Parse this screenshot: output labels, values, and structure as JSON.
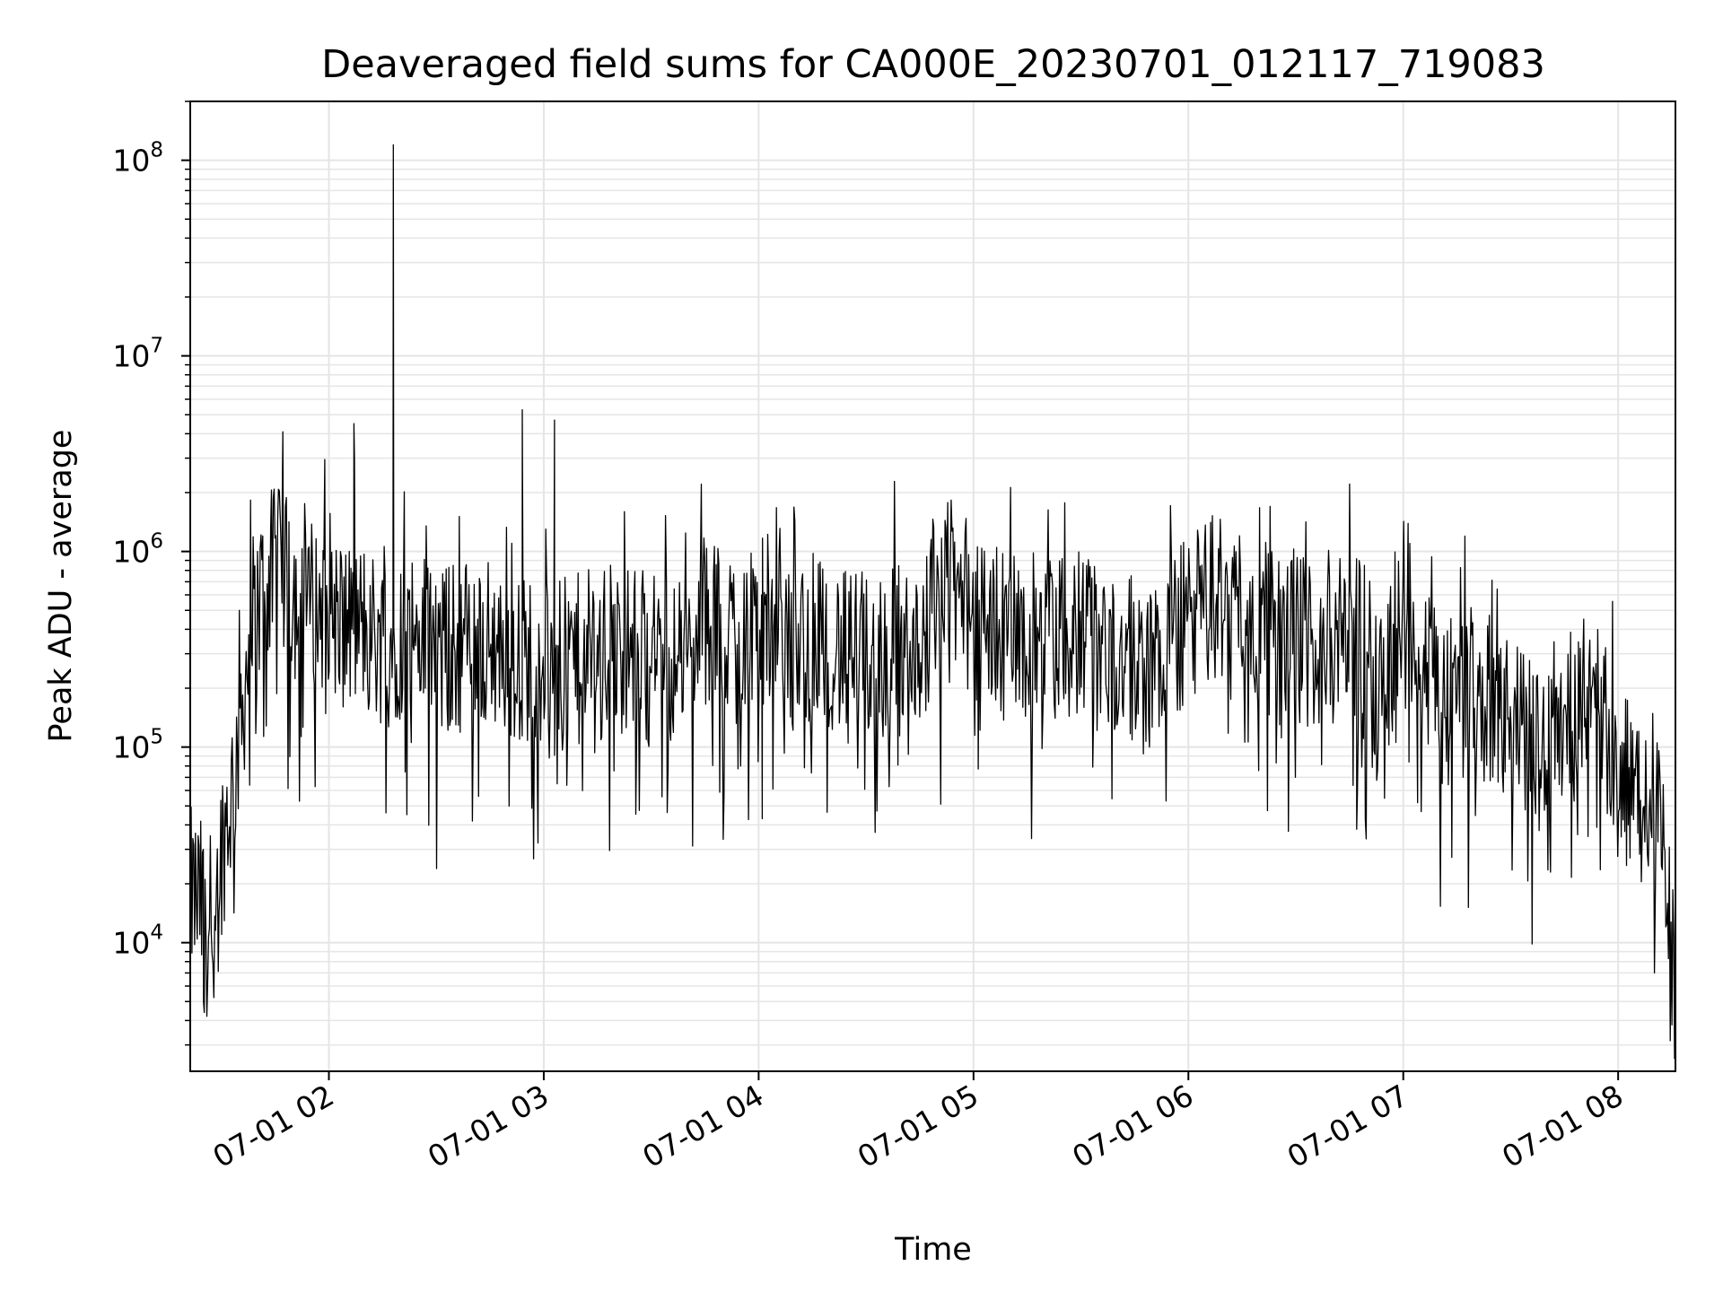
{
  "chart_data": {
    "type": "line",
    "title": "Deaveraged field sums for CA000E_20230701_012117_719083",
    "xlabel": "Time",
    "ylabel": "Peak ADU - average",
    "yscale": "log",
    "ylim": [
      2200,
      200000000
    ],
    "xlim": [
      "2023-07-01 01:21:17",
      "2023-07-01 08:16:00"
    ],
    "x_tick_labels": [
      "07-01 02",
      "07-01 03",
      "07-01 04",
      "07-01 05",
      "07-01 06",
      "07-01 07",
      "07-01 08"
    ],
    "x_tick_values": [
      "2023-07-01 02:00",
      "2023-07-01 03:00",
      "2023-07-01 04:00",
      "2023-07-01 05:00",
      "2023-07-01 06:00",
      "2023-07-01 07:00",
      "2023-07-01 08:00"
    ],
    "y_ticks": [
      {
        "value": 10000,
        "base": "10",
        "exp": "4"
      },
      {
        "value": 100000,
        "base": "10",
        "exp": "5"
      },
      {
        "value": 1000000,
        "base": "10",
        "exp": "6"
      },
      {
        "value": 10000000,
        "base": "10",
        "exp": "7"
      },
      {
        "value": 100000000,
        "base": "10",
        "exp": "8"
      }
    ],
    "grid": true,
    "line_color": "#000000",
    "grid_color": "#e5e5e5",
    "series": [
      {
        "x": [
          "2023-07-01 01:21",
          "2023-07-01 01:24",
          "2023-07-01 01:27",
          "2023-07-01 01:30",
          "2023-07-01 01:33",
          "2023-07-01 01:36",
          "2023-07-01 01:39",
          "2023-07-01 01:42",
          "2023-07-01 01:45",
          "2023-07-01 01:48",
          "2023-07-01 01:51",
          "2023-07-01 01:54",
          "2023-07-01 01:57",
          "2023-07-01 02:00",
          "2023-07-01 02:03",
          "2023-07-01 02:06",
          "2023-07-01 02:09",
          "2023-07-01 02:12",
          "2023-07-01 02:15",
          "2023-07-01 02:18",
          "2023-07-01 02:21",
          "2023-07-01 02:24",
          "2023-07-01 02:27",
          "2023-07-01 02:30",
          "2023-07-01 02:35",
          "2023-07-01 02:40",
          "2023-07-01 02:45",
          "2023-07-01 02:50",
          "2023-07-01 02:54",
          "2023-07-01 03:00",
          "2023-07-01 03:03",
          "2023-07-01 03:10",
          "2023-07-01 03:20",
          "2023-07-01 03:30",
          "2023-07-01 03:40",
          "2023-07-01 03:45",
          "2023-07-01 03:50",
          "2023-07-01 04:00",
          "2023-07-01 04:10",
          "2023-07-01 04:17",
          "2023-07-01 04:25",
          "2023-07-01 04:35",
          "2023-07-01 04:45",
          "2023-07-01 04:52",
          "2023-07-01 05:00",
          "2023-07-01 05:10",
          "2023-07-01 05:20",
          "2023-07-01 05:30",
          "2023-07-01 05:40",
          "2023-07-01 05:50",
          "2023-07-01 06:00",
          "2023-07-01 06:08",
          "2023-07-01 06:15",
          "2023-07-01 06:25",
          "2023-07-01 06:35",
          "2023-07-01 06:45",
          "2023-07-01 06:55",
          "2023-07-01 07:00",
          "2023-07-01 07:10",
          "2023-07-01 07:20",
          "2023-07-01 07:30",
          "2023-07-01 07:40",
          "2023-07-01 07:50",
          "2023-07-01 08:00",
          "2023-07-01 08:06",
          "2023-07-01 08:12",
          "2023-07-01 08:16"
        ],
        "values": [
          18000,
          16000,
          12000,
          30000,
          60000,
          180000,
          450000,
          650000,
          800000,
          700000,
          600000,
          550000,
          500000,
          600000,
          450000,
          400000,
          420000,
          380000,
          350000,
          330000,
          400000,
          380000,
          350000,
          300000,
          320000,
          350000,
          330000,
          300000,
          280000,
          300000,
          250000,
          280000,
          320000,
          300000,
          280000,
          450000,
          350000,
          500000,
          300000,
          400000,
          280000,
          300000,
          350000,
          700000,
          500000,
          400000,
          330000,
          400000,
          280000,
          250000,
          450000,
          600000,
          550000,
          350000,
          350000,
          380000,
          220000,
          600000,
          180000,
          200000,
          130000,
          110000,
          220000,
          90000,
          50000,
          35000,
          5000
        ]
      }
    ],
    "extra_points": [
      {
        "x": "2023-07-01 01:25",
        "y": 5000
      },
      {
        "x": "2023-07-01 01:35",
        "y": 500000
      },
      {
        "x": "2023-07-01 01:47",
        "y": 2100000
      },
      {
        "x": "2023-07-01 02:07",
        "y": 4500000
      },
      {
        "x": "2023-07-01 02:18",
        "y": 120000000
      },
      {
        "x": "2023-07-01 02:54",
        "y": 5300000
      },
      {
        "x": "2023-07-01 03:03",
        "y": 4700000
      },
      {
        "x": "2023-07-01 04:01",
        "y": 43000
      },
      {
        "x": "2023-07-01 06:47",
        "y": 38000
      },
      {
        "x": "2023-07-01 07:04",
        "y": 52000
      }
    ]
  }
}
